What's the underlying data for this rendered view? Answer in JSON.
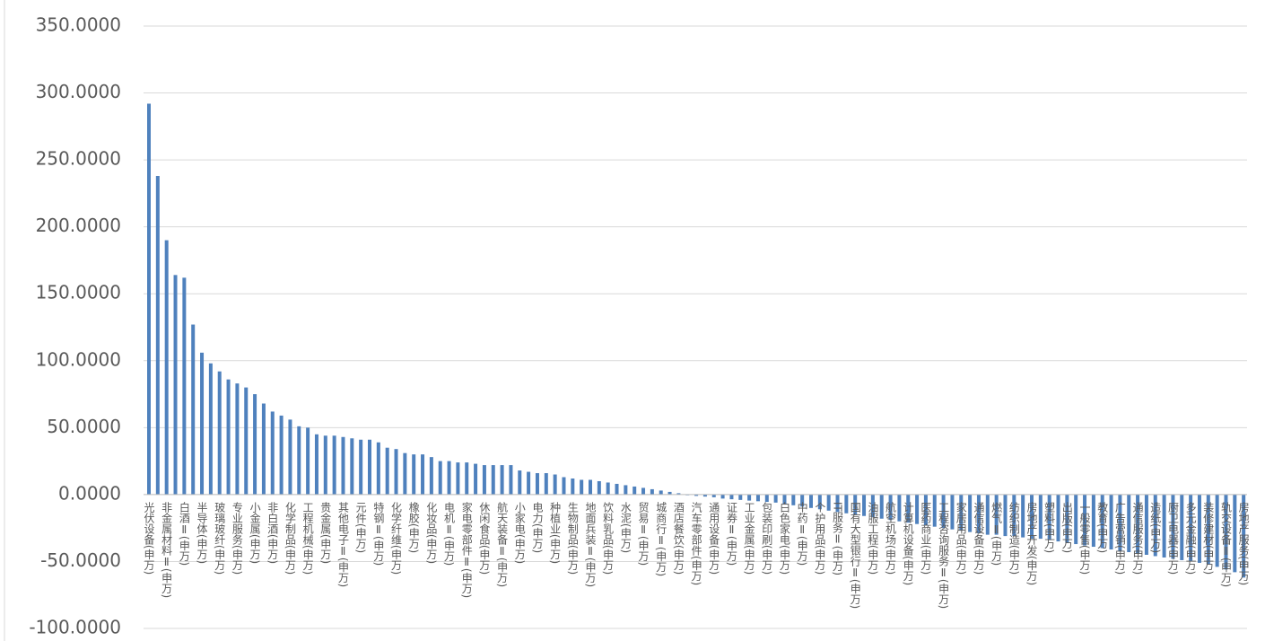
{
  "chart_data": {
    "type": "bar",
    "color": "#4f81bd",
    "grid": true,
    "ylim": [
      -100,
      350
    ],
    "yticks": [
      {
        "value": -100,
        "label": "-100.0000"
      },
      {
        "value": -50,
        "label": "-50.0000"
      },
      {
        "value": 0,
        "label": "0.0000"
      },
      {
        "value": 50,
        "label": "50.0000"
      },
      {
        "value": 100,
        "label": "100.0000"
      },
      {
        "value": 150,
        "label": "150.0000"
      },
      {
        "value": 200,
        "label": "200.0000"
      },
      {
        "value": 250,
        "label": "250.0000"
      },
      {
        "value": 300,
        "label": "300.0000"
      },
      {
        "value": 350,
        "label": "350.0000"
      }
    ],
    "categories": [
      "光伏设备(申万)",
      null,
      "非金属材料Ⅱ(申万)",
      null,
      "白酒Ⅱ(申万)",
      null,
      "半导体(申万)",
      null,
      "玻璃玻纤(申万)",
      null,
      "专业服务(申万)",
      null,
      "小金属(申万)",
      null,
      "非白酒(申万)",
      null,
      "化学制品(申万)",
      null,
      "工程机械(申万)",
      null,
      "贵金属(申万)",
      null,
      "其他电子Ⅱ(申万)",
      null,
      "元件(申万)",
      null,
      "特钢Ⅱ(申万)",
      null,
      "化学纤维(申万)",
      null,
      "橡胶(申万)",
      null,
      "化妆品(申万)",
      null,
      "电机Ⅱ(申万)",
      null,
      "家电零部件Ⅱ(申万)",
      null,
      "休闲食品(申万)",
      null,
      "航天装备Ⅱ(申万)",
      null,
      "小家电(申万)",
      null,
      "电力(申万)",
      null,
      "种植业(申万)",
      null,
      "生物制品(申万)",
      null,
      "地面兵装Ⅱ(申万)",
      null,
      "饮料乳品(申万)",
      null,
      "水泥(申万)",
      null,
      "贸易Ⅱ(申万)",
      null,
      "城商行Ⅱ(申万)",
      null,
      "酒店餐饮(申万)",
      null,
      "汽车零部件(申万)",
      null,
      "通用设备(申万)",
      null,
      "证券Ⅱ(申万)",
      null,
      "工业金属(申万)",
      null,
      "包装印刷(申万)",
      null,
      "白色家电(申万)",
      null,
      "中药Ⅱ(申万)",
      null,
      "个护用品(申万)",
      null,
      "IT服务Ⅱ(申万)",
      null,
      "国有大型银行Ⅱ(申万)",
      null,
      "油服工程(申万)",
      null,
      "航空机场(申万)",
      null,
      "计算机设备(申万)",
      null,
      "医药商业(申万)",
      null,
      "工程咨询服务Ⅱ(申万)",
      null,
      "家居用品(申万)",
      null,
      "通信设备(申万)",
      null,
      "燃气Ⅱ(申万)",
      null,
      "纺织制造(申万)",
      null,
      "房地产开发(申万)",
      null,
      "塑料(申万)",
      null,
      "出版(申万)",
      null,
      "一般零售(申万)",
      null,
      "教育(申万)",
      null,
      "广告营销(申万)",
      null,
      "通信服务(申万)",
      null,
      "造纸(申万)",
      null,
      "厨卫电器(申万)",
      null,
      "多元金融(申万)",
      null,
      "装修建材(申万)",
      null,
      "轨交设备Ⅱ(申万)",
      null,
      "房地产服务(申万)"
    ],
    "values": [
      292,
      238,
      190,
      164,
      162,
      127,
      106,
      98,
      92,
      86,
      83,
      80,
      75,
      68,
      62,
      59,
      56,
      51,
      50,
      45,
      44,
      44,
      43,
      42,
      41,
      41,
      39,
      35,
      34,
      31,
      30,
      30,
      28,
      25,
      25,
      24,
      24,
      23,
      22,
      22,
      22,
      22,
      18,
      17,
      16,
      16,
      15,
      13,
      12,
      11,
      11,
      10,
      9,
      8,
      7,
      6,
      5,
      4,
      3,
      2,
      1,
      -0.5,
      -1,
      -1.5,
      -2,
      -3,
      -3.5,
      -4,
      -4.5,
      -5,
      -5.5,
      -6,
      -7,
      -8,
      -9,
      -10,
      -11,
      -12,
      -13,
      -14,
      -15,
      -16,
      -17,
      -18,
      -19,
      -20,
      -21,
      -22,
      -23,
      -24,
      -25,
      -26,
      -27,
      -28,
      -29,
      -30,
      -30,
      -31,
      -31,
      -32,
      -33,
      -33,
      -34,
      -35,
      -36,
      -37,
      -38,
      -39,
      -40,
      -41,
      -42,
      -43,
      -44,
      -45,
      -46,
      -47,
      -48,
      -49,
      -50,
      -51,
      -52,
      -54,
      -56,
      -58,
      -62
    ]
  }
}
